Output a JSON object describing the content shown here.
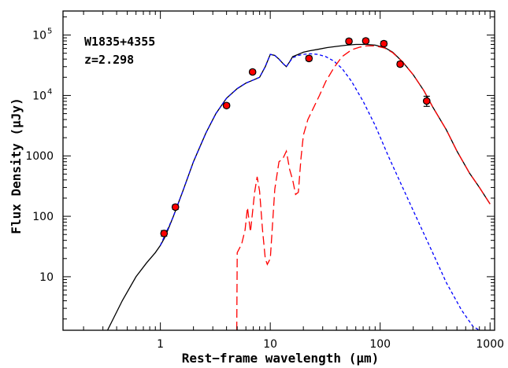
{
  "chart_data": {
    "type": "scatter",
    "xlabel": "Rest−frame wavelength (μm)",
    "ylabel": "Flux Density (μJy)",
    "x_scale": "log",
    "y_scale": "log",
    "xlim": [
      0.13,
      1100
    ],
    "ylim": [
      1.3,
      250000
    ],
    "grid": false,
    "annotations": [
      {
        "id": "source-name",
        "text": "W1835+4355"
      },
      {
        "id": "redshift",
        "text": "z=2.298"
      }
    ],
    "x_ticks": [
      {
        "value": 1,
        "label": "1"
      },
      {
        "value": 10,
        "label": "10"
      },
      {
        "value": 100,
        "label": "100"
      },
      {
        "value": 1000,
        "label": "1000"
      }
    ],
    "y_ticks": [
      {
        "value": 10,
        "label": "10"
      },
      {
        "value": 100,
        "label": "100"
      },
      {
        "value": 1000,
        "label": "1000"
      },
      {
        "value": 10000,
        "label": "10",
        "exp": "4"
      },
      {
        "value": 100000,
        "label": "10",
        "exp": "5"
      }
    ],
    "series": [
      {
        "style": "points",
        "color": "#ff0000",
        "points": [
          {
            "x": 1.08,
            "y": 52,
            "err": [
              47,
              58
            ]
          },
          {
            "x": 1.37,
            "y": 142,
            "err": [
              130,
              155
            ]
          },
          {
            "x": 4.0,
            "y": 6800,
            "err": [
              6300,
              7400
            ]
          },
          {
            "x": 6.9,
            "y": 24500,
            "err": [
              22800,
              26300
            ]
          },
          {
            "x": 22.5,
            "y": 41000,
            "err": [
              37500,
              45000
            ]
          },
          {
            "x": 52,
            "y": 79000,
            "err": [
              73000,
              86000
            ]
          },
          {
            "x": 74,
            "y": 80000,
            "err": [
              74000,
              87000
            ]
          },
          {
            "x": 108,
            "y": 72000,
            "err": [
              66000,
              79000
            ]
          },
          {
            "x": 152,
            "y": 33000,
            "err": [
              30500,
              36000
            ]
          },
          {
            "x": 265,
            "y": 8100,
            "err": [
              6600,
              9700
            ]
          }
        ]
      },
      {
        "style": "solid",
        "color": "#000000",
        "x": [
          0.33,
          0.45,
          0.6,
          0.75,
          0.9,
          1.0,
          1.1,
          1.3,
          1.6,
          2.0,
          2.6,
          3.2,
          4.0,
          5.0,
          6.0,
          7.0,
          8.0,
          9.0,
          10.0,
          11.0,
          12.0,
          13.0,
          14.0,
          15.0,
          16.0,
          18.0,
          20.0,
          23.0,
          27.0,
          33.0,
          40.0,
          50.0,
          60.0,
          75.0,
          90.0,
          110.0,
          130.0,
          160.0,
          200.0,
          250.0,
          300.0,
          400.0,
          500.0,
          650.0,
          800.0,
          1000.0
        ],
        "y": [
          1.3,
          4.0,
          10.0,
          17.0,
          25.0,
          33.0,
          45.0,
          95.0,
          260.0,
          800.0,
          2400.0,
          5000.0,
          9000.0,
          13000.0,
          16000.0,
          18000.0,
          20000.0,
          30000.0,
          48000.0,
          46000.0,
          40000.0,
          34000.0,
          30000.0,
          36000.0,
          44000.0,
          48000.0,
          52000.0,
          55000.0,
          58000.0,
          62000.0,
          65000.0,
          68000.0,
          70000.0,
          70000.0,
          68000.0,
          62000.0,
          52000.0,
          36000.0,
          22000.0,
          12000.0,
          6500.0,
          2700.0,
          1200.0,
          520.0,
          300.0,
          160.0
        ]
      },
      {
        "style": "dashed",
        "color": "#0000ff",
        "x": [
          1.0,
          1.3,
          1.6,
          2.0,
          2.6,
          3.2,
          4.0,
          5.0,
          6.0,
          7.0,
          8.0,
          9.0,
          10.0,
          11.0,
          12.0,
          13.0,
          14.0,
          15.0,
          16.0,
          18.0,
          20.0,
          23.0,
          27.0,
          32.0,
          38.0,
          45.0,
          55.0,
          70.0,
          90.0,
          120.0,
          160.0,
          220.0,
          300.0,
          400.0,
          550.0,
          700.0,
          900.0
        ],
        "y": [
          33.0,
          95.0,
          260.0,
          800.0,
          2400.0,
          5000.0,
          9000.0,
          13000.0,
          16000.0,
          18000.0,
          20000.0,
          30000.0,
          48000.0,
          46000.0,
          40000.0,
          34000.0,
          30000.0,
          36000.0,
          42000.0,
          46000.0,
          48000.0,
          49000.0,
          48000.0,
          44000.0,
          37000.0,
          28000.0,
          17000.0,
          8000.0,
          3200.0,
          950.0,
          300.0,
          85.0,
          25.0,
          8.0,
          2.8,
          1.5,
          1.15
        ]
      },
      {
        "style": "longdash",
        "color": "#ff0000",
        "x": [
          4.95,
          5.0,
          5.5,
          5.9,
          6.2,
          6.6,
          7.2,
          7.6,
          8.0,
          8.5,
          9.0,
          9.4,
          10.0,
          11.0,
          12.0,
          13.0,
          14.0,
          15.0,
          16.0,
          17.0,
          18.0,
          19.0,
          20.0,
          22.0,
          25.0,
          28.0,
          32.0,
          38.0,
          45.0,
          55.0,
          65.0,
          75.0,
          90.0,
          110.0,
          130.0,
          160.0,
          200.0,
          250.0,
          300.0,
          400.0,
          500.0,
          650.0,
          800.0,
          1000.0
        ],
        "y": [
          1.3,
          25.0,
          35.0,
          60.0,
          140.0,
          55.0,
          250.0,
          450.0,
          260.0,
          60.0,
          20.0,
          16.0,
          20.0,
          280.0,
          800.0,
          900.0,
          1200.0,
          600.0,
          400.0,
          230.0,
          250.0,
          900.0,
          2200.0,
          4000.0,
          6500.0,
          10000.0,
          17000.0,
          29000.0,
          44000.0,
          57000.0,
          63000.0,
          66000.0,
          66000.0,
          61000.0,
          51000.0,
          36000.0,
          22000.0,
          12000.0,
          6500.0,
          2700.0,
          1200.0,
          520.0,
          300.0,
          160.0
        ]
      }
    ]
  }
}
